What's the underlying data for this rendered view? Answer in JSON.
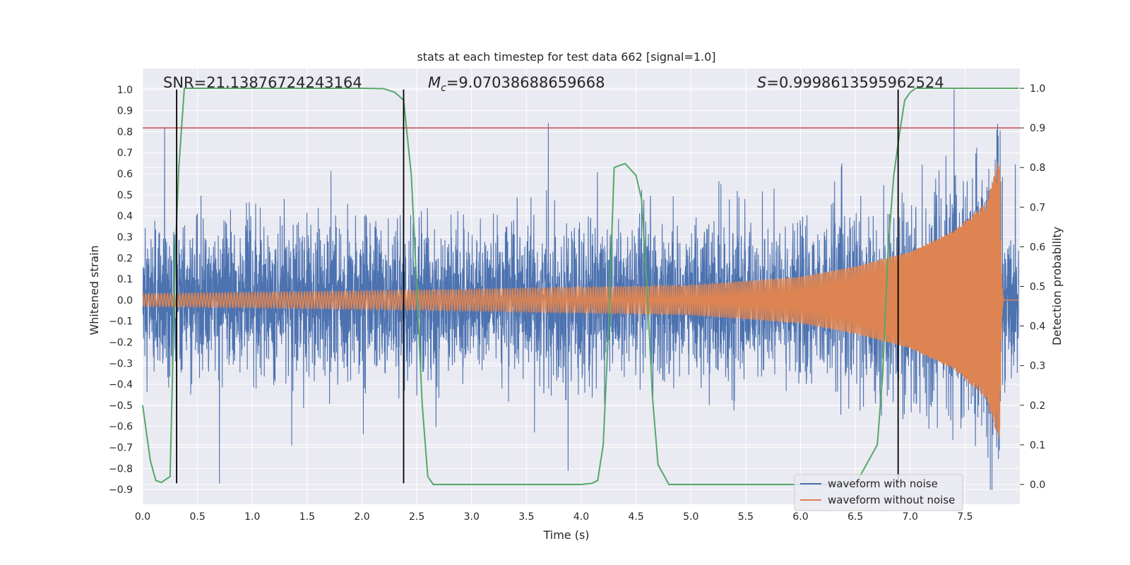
{
  "chart_data": {
    "type": "line",
    "title": "stats at each timestep for test data 662 [signal=1.0]",
    "xlabel": "Time (s)",
    "ylabel": "Whitened strain",
    "y2label": "Detection probability",
    "xlim": [
      0.0,
      8.0
    ],
    "ylim": [
      -0.97,
      1.1
    ],
    "y2lim": [
      -0.05,
      1.05
    ],
    "xticks": [
      0.0,
      0.5,
      1.0,
      1.5,
      2.0,
      2.5,
      3.0,
      3.5,
      4.0,
      4.5,
      5.0,
      5.5,
      6.0,
      6.5,
      7.0,
      7.5
    ],
    "xtick_labels": [
      "0.0",
      "0.5",
      "1.0",
      "1.5",
      "2.0",
      "2.5",
      "3.0",
      "3.5",
      "4.0",
      "4.5",
      "5.0",
      "5.5",
      "6.0",
      "6.5",
      "7.0",
      "7.5"
    ],
    "yticks": [
      -0.9,
      -0.8,
      -0.7,
      -0.6,
      -0.5,
      -0.4,
      -0.3,
      -0.2,
      -0.1,
      0.0,
      0.1,
      0.2,
      0.3,
      0.4,
      0.5,
      0.6,
      0.7,
      0.8,
      0.9,
      1.0
    ],
    "ytick_labels": [
      "−0.9",
      "−0.8",
      "−0.7",
      "−0.6",
      "−0.5",
      "−0.4",
      "−0.3",
      "−0.2",
      "−0.1",
      "0.0",
      "0.1",
      "0.2",
      "0.3",
      "0.4",
      "0.5",
      "0.6",
      "0.7",
      "0.8",
      "0.9",
      "1.0"
    ],
    "y2ticks": [
      0.0,
      0.1,
      0.2,
      0.3,
      0.4,
      0.5,
      0.6,
      0.7,
      0.8,
      0.9,
      1.0
    ],
    "y2tick_labels": [
      "0.0",
      "0.1",
      "0.2",
      "0.3",
      "0.4",
      "0.5",
      "0.6",
      "0.7",
      "0.8",
      "0.9",
      "1.0"
    ],
    "annotations": {
      "snr": "SNR=21.13876724243164",
      "mc_symbol": "M",
      "mc_sub": "c",
      "mc_value": "=9.07038688659668",
      "s_symbol": "S",
      "s_value": "=0.9998613595962524"
    },
    "threshold": {
      "axis": "y2",
      "value": 0.9,
      "color": "#c44e52"
    },
    "vlines": [
      0.31,
      2.38,
      6.89
    ],
    "vline_range": [
      -0.87,
      1.0
    ],
    "legend": {
      "position": "lower-right",
      "entries": [
        {
          "label": "waveform with noise",
          "color": "#4c72b0"
        },
        {
          "label": "waveform without noise",
          "color": "#dd8452"
        }
      ]
    },
    "series": [
      {
        "name": "waveform with noise",
        "axis": "y",
        "color": "#4c72b0",
        "style": "dense-noise",
        "noise_sigma": 0.17,
        "notable_peaks": [
          {
            "x": 0.2,
            "y": 0.82
          },
          {
            "x": 3.7,
            "y": 0.84
          },
          {
            "x": 7.4,
            "y": 1.0
          },
          {
            "x": 0.7,
            "y": -0.87
          },
          {
            "x": 3.88,
            "y": -0.81
          }
        ]
      },
      {
        "name": "waveform without noise",
        "axis": "y",
        "color": "#dd8452",
        "style": "chirp",
        "t_merger": 7.82,
        "x_end": 8.0,
        "envelope": [
          {
            "x": 0.0,
            "y": 0.03
          },
          {
            "x": 3.0,
            "y": 0.05
          },
          {
            "x": 5.0,
            "y": 0.07
          },
          {
            "x": 6.0,
            "y": 0.11
          },
          {
            "x": 6.5,
            "y": 0.16
          },
          {
            "x": 7.0,
            "y": 0.23
          },
          {
            "x": 7.4,
            "y": 0.33
          },
          {
            "x": 7.7,
            "y": 0.47
          },
          {
            "x": 7.8,
            "y": 0.66
          }
        ]
      },
      {
        "name": "detection probability",
        "axis": "y2",
        "color": "#55a868",
        "x": [
          0.0,
          0.07,
          0.12,
          0.17,
          0.25,
          0.3,
          0.33,
          0.38,
          0.5,
          1.0,
          1.5,
          2.0,
          2.2,
          2.3,
          2.38,
          2.45,
          2.5,
          2.55,
          2.6,
          2.65,
          3.0,
          3.5,
          4.0,
          4.1,
          4.15,
          4.2,
          4.25,
          4.3,
          4.4,
          4.5,
          4.55,
          4.6,
          4.65,
          4.7,
          4.8,
          5.0,
          6.0,
          6.5,
          6.7,
          6.75,
          6.8,
          6.85,
          6.9,
          6.95,
          7.0,
          7.05,
          7.5,
          8.0
        ],
        "y": [
          0.2,
          0.06,
          0.01,
          0.005,
          0.02,
          0.6,
          0.8,
          1.0,
          1.0,
          1.0,
          1.0,
          1.0,
          0.999,
          0.99,
          0.97,
          0.78,
          0.5,
          0.2,
          0.02,
          0.0,
          0.0,
          0.0,
          0.0,
          0.003,
          0.01,
          0.1,
          0.4,
          0.8,
          0.81,
          0.78,
          0.72,
          0.5,
          0.22,
          0.05,
          0.0,
          0.0,
          0.0,
          0.0,
          0.1,
          0.28,
          0.6,
          0.78,
          0.88,
          0.97,
          0.99,
          1.0,
          1.0,
          1.0
        ]
      }
    ]
  }
}
